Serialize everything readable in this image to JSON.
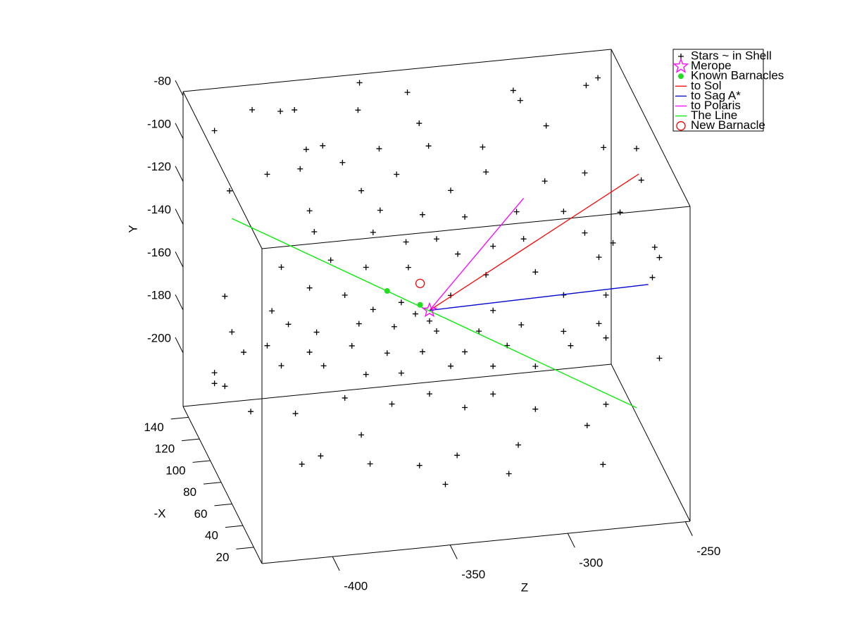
{
  "chart_data": {
    "type": "scatter3d",
    "xlabel": "Z",
    "ylabel": "Y",
    "zlabel": "-X",
    "xlim": [
      -430,
      -248
    ],
    "xticks": [
      -400,
      -350,
      -300,
      -250
    ],
    "ylim": [
      -225,
      -78
    ],
    "yticks": [
      -80,
      -100,
      -120,
      -140,
      -160,
      -180,
      -200
    ],
    "zlim": [
      5,
      150
    ],
    "zticks": [
      20,
      40,
      60,
      80,
      100,
      120,
      140
    ],
    "legend": "top-right",
    "series": [
      {
        "name": "Stars ~ in Shell",
        "color": "#000000",
        "marker": "plus",
        "x": [
          -420,
          -404,
          -392,
          -386,
          -355,
          -338,
          -359,
          -333,
          -293,
          -290,
          -262,
          -257,
          -381,
          -374,
          -350,
          -329,
          -306,
          -279,
          -268,
          -254,
          -411,
          -397,
          -379,
          -371,
          -356,
          -333,
          -318,
          -293,
          -276,
          -252,
          -427,
          -393,
          -363,
          -345,
          -327,
          -305,
          -285,
          -261,
          -258,
          -391,
          -366,
          -352,
          -330,
          -315,
          -302,
          -276,
          -264,
          -405,
          -384,
          -369,
          -351,
          -318,
          -297,
          -270,
          -259,
          -393,
          -378,
          -366,
          -354,
          -333,
          -315,
          -285,
          -267,
          -409,
          -429,
          -426,
          -402,
          -390,
          -372,
          -357,
          -339,
          -321,
          -303,
          -285,
          -270,
          -411,
          -393,
          -375,
          -360,
          -345,
          -327,
          -309,
          -282,
          -267,
          -420,
          -421,
          -405,
          -387,
          -369,
          -354,
          -333,
          -315,
          -297,
          -420,
          -429,
          -418,
          -399,
          -378,
          -358,
          -342,
          -327,
          -315,
          -297,
          -275,
          -267,
          -408,
          -400,
          -371,
          -379,
          -358,
          -347,
          -342,
          -320,
          -316,
          -280,
          -256,
          -256,
          -339,
          -342,
          -348
        ],
        "y": [
          -90,
          -82,
          -84,
          -84,
          -82,
          -81,
          -87,
          -96,
          -85,
          -90,
          -86,
          -83,
          -103,
          -102,
          -106,
          -107,
          -110,
          -103,
          -85,
          -87,
          -82,
          -81,
          -80,
          -94,
          -88,
          -98,
          -91,
          -98,
          -96,
          -102,
          -88,
          -101,
          -104,
          -108,
          -111,
          -111,
          -113,
          -116,
          -107,
          -111,
          -114,
          -120,
          -128,
          -126,
          -124,
          -124,
          -130,
          -126,
          -125,
          -130,
          -132,
          -139,
          -140,
          -136,
          -121,
          -137,
          -142,
          -150,
          -148,
          -147,
          -156,
          -152,
          -154,
          -146,
          -137,
          -154,
          -153,
          -158,
          -156,
          -159,
          -163,
          -165,
          -164,
          -169,
          -167,
          -162,
          -167,
          -166,
          -171,
          -172,
          -174,
          -173,
          -176,
          -174,
          -203,
          -164,
          -172,
          -174,
          -180,
          -181,
          -180,
          -182,
          -184,
          -208,
          -179,
          -192,
          -195,
          -190,
          -195,
          -192,
          -200,
          -195,
          -204,
          -214,
          -205,
          -192,
          -189,
          -208,
          -195,
          -198,
          -208,
          -195,
          -206,
          -193,
          -206,
          -159,
          -112,
          -120,
          -158,
          -154
        ],
        "z": [
          135.5,
          135.5,
          135.5,
          135.5,
          150,
          135.5,
          135.5,
          135.5,
          135.5,
          135.5,
          135.5,
          135.5,
          135.5,
          135.5,
          135.5,
          135.5,
          135.5,
          135.5,
          77.5,
          77.5,
          77.5,
          77.5,
          77.5,
          77.5,
          77.5,
          77.5,
          77.5,
          77.5,
          77.5,
          77.5,
          77.5,
          77.5,
          77.5,
          77.5,
          77.5,
          77.5,
          77.5,
          77.5,
          26.75,
          77.5,
          77.5,
          77.5,
          77.5,
          77.5,
          77.5,
          77.5,
          77.5,
          77.5,
          77.5,
          77.5,
          77.5,
          77.5,
          77.5,
          77.5,
          26.75,
          77.5,
          77.5,
          77.5,
          77.5,
          77.5,
          77.5,
          77.5,
          77.5,
          77.5,
          77.5,
          77.5,
          77.5,
          77.5,
          77.5,
          77.5,
          77.5,
          77.5,
          77.5,
          77.5,
          77.5,
          77.5,
          77.5,
          77.5,
          77.5,
          77.5,
          77.5,
          77.5,
          77.5,
          77.5,
          135.5,
          77.5,
          77.5,
          77.5,
          77.5,
          77.5,
          77.5,
          77.5,
          77.5,
          135.5,
          77.5,
          77.5,
          77.5,
          77.5,
          77.5,
          77.5,
          77.5,
          77.5,
          77.5,
          77.5,
          77.5,
          26.75,
          26.75,
          77.5,
          26.75,
          26.75,
          26.75,
          26.75,
          26.75,
          26.75,
          26.75,
          26.75,
          26.75,
          77.5,
          77.5,
          77.5
        ]
      },
      {
        "name": "Merope",
        "color": "#ff00ff",
        "marker": "star",
        "x": [
          -342
        ],
        "y": [
          -153
        ],
        "z": [
          77.5
        ]
      },
      {
        "name": "Known Barnacles",
        "color": "#22dd22",
        "marker": "dot",
        "x": [
          -360,
          -346
        ],
        "y": [
          -142,
          -150
        ],
        "z": [
          77.5,
          77.5
        ]
      },
      {
        "name": "to Sol",
        "color": "#ff0000",
        "marker": "line",
        "x": [
          -342,
          -253
        ],
        "y": [
          -153,
          -99
        ],
        "z": [
          77.5,
          77.5
        ]
      },
      {
        "name": "to Sag A*",
        "color": "#0000cc",
        "marker": "line",
        "x": [
          -342,
          -249
        ],
        "y": [
          -153,
          -151
        ],
        "z": [
          77.5,
          77.5
        ]
      },
      {
        "name": "to Polaris",
        "color": "#ff00ff",
        "marker": "line",
        "x": [
          -342,
          -302
        ],
        "y": [
          -153,
          -105
        ],
        "z": [
          77.5,
          77.5
        ]
      },
      {
        "name": "The Line",
        "color": "#00ee00",
        "marker": "line",
        "x": [
          -426,
          -254
        ],
        "y": [
          -101,
          -208
        ],
        "z": [
          77.5,
          77.5
        ]
      },
      {
        "name": "New Barnacle",
        "color": "#ee0000",
        "marker": "circle",
        "x": [
          -346
        ],
        "y": [
          -140
        ],
        "z": [
          77.5
        ]
      }
    ]
  }
}
